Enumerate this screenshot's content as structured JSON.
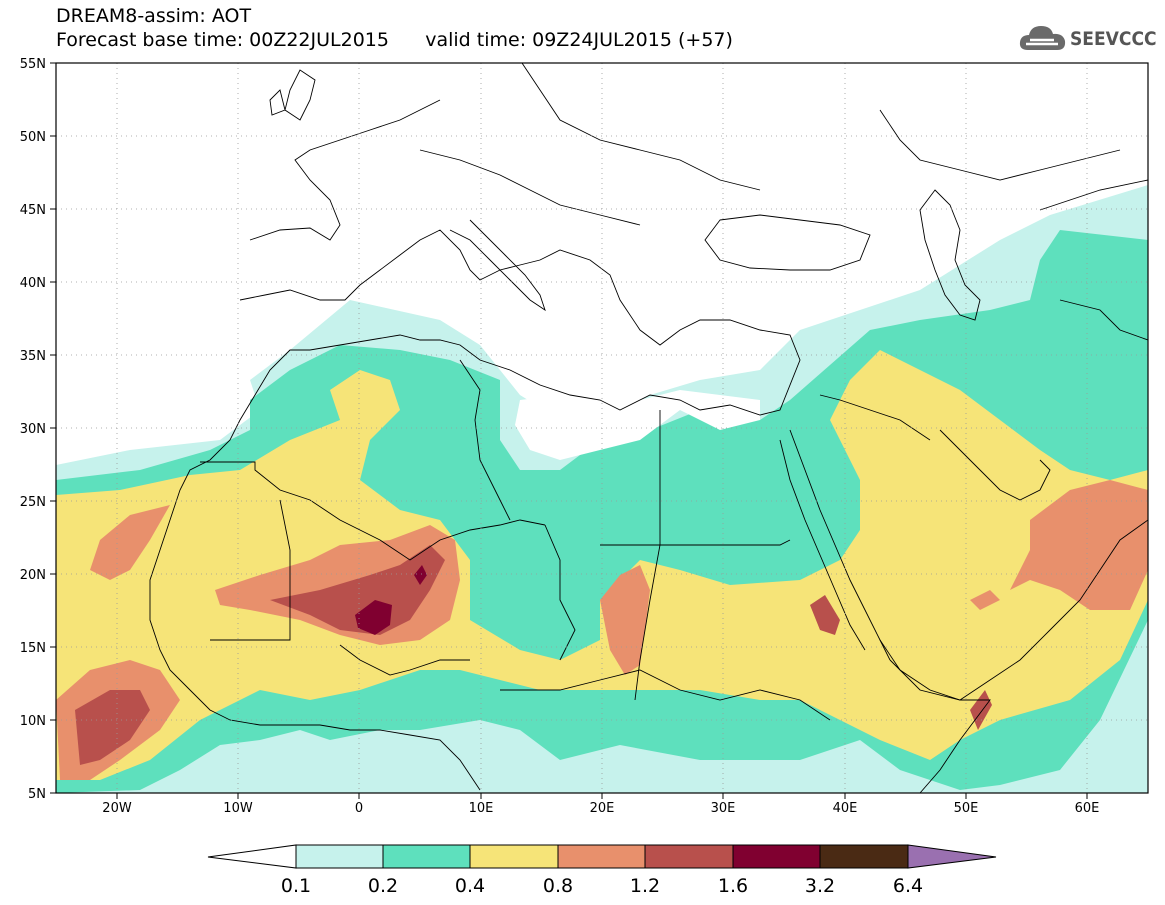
{
  "header": {
    "title": "DREAM8-assim: AOT",
    "base_time": "Forecast base time: 00Z22JUL2015",
    "valid_time": "valid time: 09Z24JUL2015 (+57)"
  },
  "logo": {
    "text": "SEEVCCC",
    "icon": "cloud-icon"
  },
  "map": {
    "lon_range": [
      -25,
      65
    ],
    "lat_range": [
      5,
      55
    ],
    "lat_labels": [
      "55N",
      "50N",
      "45N",
      "40N",
      "35N",
      "30N",
      "25N",
      "20N",
      "15N",
      "10N",
      "5N"
    ],
    "lon_labels": [
      "20W",
      "10W",
      "0",
      "10E",
      "20E",
      "30E",
      "40E",
      "50E",
      "60E"
    ]
  },
  "colorbar": {
    "labels": [
      "0.1",
      "0.2",
      "0.4",
      "0.8",
      "1.2",
      "1.6",
      "3.2",
      "6.4"
    ],
    "colors": [
      "#ffffff",
      "#c6f2ec",
      "#5ee0bd",
      "#f6e478",
      "#e8906c",
      "#b8504c",
      "#800030",
      "#4a2a14",
      "#9a70b0"
    ]
  }
}
